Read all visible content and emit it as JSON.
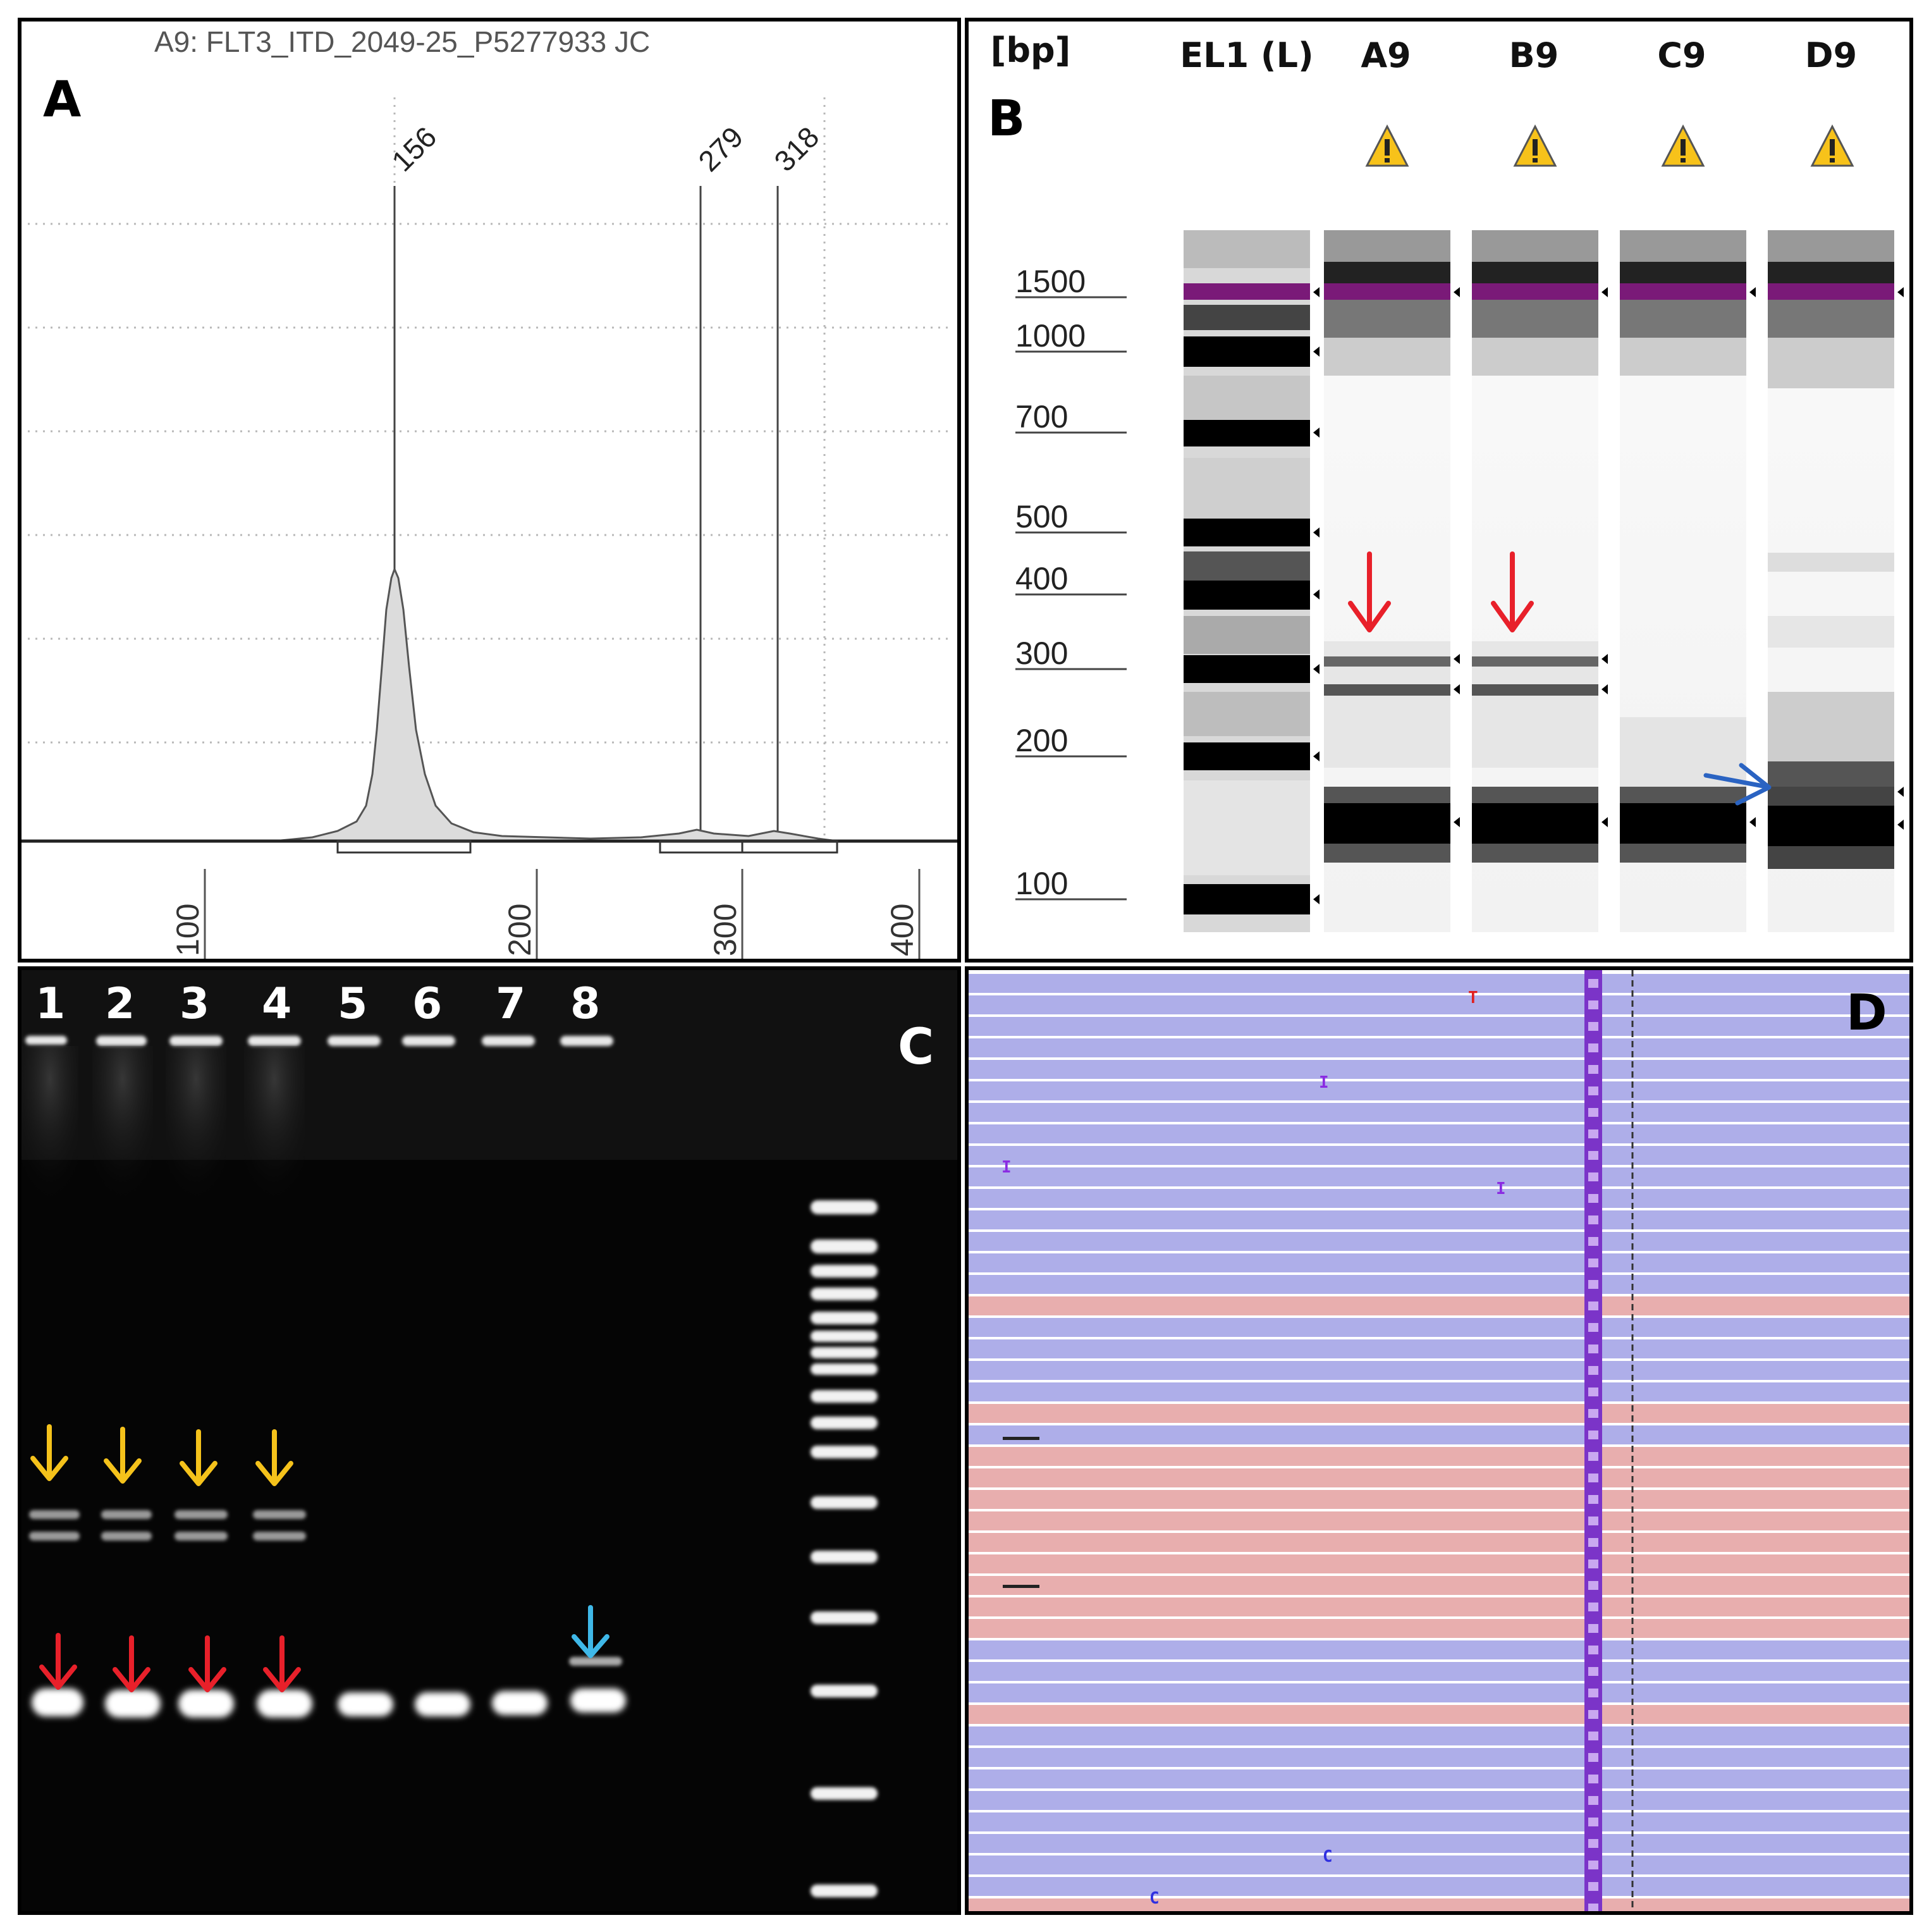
{
  "panel_a": {
    "letter": "A",
    "title": "A9: FLT3_ITD_2049-25_P5277933 JC",
    "peaks": [
      "156",
      "279",
      "318"
    ],
    "x_ticks": [
      "100",
      "200",
      "300",
      "400"
    ]
  },
  "panel_b": {
    "letter": "B",
    "size_header": "[bp]",
    "lanes": [
      "EL1 (L)",
      "A9",
      "B9",
      "C9",
      "D9"
    ],
    "ladder_sizes": [
      "1500",
      "1000",
      "700",
      "500",
      "400",
      "300",
      "200",
      "100"
    ]
  },
  "panel_c": {
    "letter": "C",
    "lanes": [
      "1",
      "2",
      "3",
      "4",
      "5",
      "6",
      "7",
      "8"
    ]
  },
  "panel_d": {
    "letter": "D",
    "mismatch_bases": [
      "T",
      "I",
      "I",
      "I",
      "C",
      "C"
    ]
  },
  "colors": {
    "read_blue": "#aeaee9",
    "read_pink": "#e8aeae",
    "arrow_red": "#e8202a",
    "arrow_yellow": "#f5c21b",
    "arrow_cyan": "#3fb8e8",
    "arrow_blue": "#2a63c2",
    "marker_purple": "#7a1a78"
  }
}
